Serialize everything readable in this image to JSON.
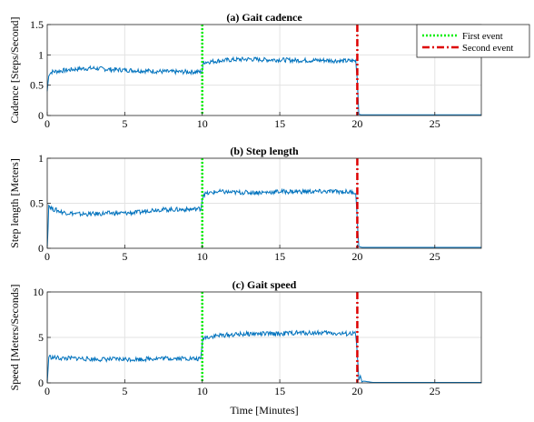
{
  "figure": {
    "xlabel": "Time [Minutes]",
    "legend": {
      "placement": "top-right",
      "entries": [
        {
          "label": "First event",
          "color": "#00ee00",
          "style": "dotted"
        },
        {
          "label": "Second event",
          "color": "#dd0000",
          "style": "dash-dot"
        }
      ]
    }
  },
  "chart_data": [
    {
      "type": "line",
      "title": "(a) Gait cadence",
      "xlabel": "",
      "ylabel": "Cadence [Steps/Second]",
      "xlim": [
        0,
        28
      ],
      "ylim": [
        0,
        1.5
      ],
      "xticks": [
        "0",
        "5",
        "10",
        "15",
        "20",
        "25"
      ],
      "yticks": [
        "0",
        "0.5",
        "1",
        "1.5"
      ],
      "grid": true,
      "series": [
        {
          "color": "#0072bd",
          "x": [
            0,
            0.1,
            0.3,
            1,
            2,
            3,
            4,
            5,
            6,
            7,
            8,
            9,
            9.9,
            10,
            10.1,
            11,
            12,
            13,
            14,
            15,
            16,
            17,
            18,
            19,
            19.9,
            20,
            20.1,
            20.3,
            21,
            22,
            23,
            24,
            25,
            26,
            27,
            28
          ],
          "y": [
            0.4,
            0.68,
            0.72,
            0.74,
            0.77,
            0.78,
            0.76,
            0.75,
            0.74,
            0.73,
            0.72,
            0.72,
            0.72,
            0.75,
            0.88,
            0.9,
            0.92,
            0.93,
            0.92,
            0.92,
            0.91,
            0.91,
            0.91,
            0.9,
            0.9,
            0.6,
            0.02,
            0.01,
            0.01,
            0.01,
            0.01,
            0.01,
            0.01,
            0.01,
            0.01,
            0.01
          ]
        }
      ],
      "events": [
        10,
        20
      ]
    },
    {
      "type": "line",
      "title": "(b) Step length",
      "xlabel": "",
      "ylabel": "Step length [Meters]",
      "xlim": [
        0,
        28
      ],
      "ylim": [
        0,
        1
      ],
      "xticks": [
        "0",
        "5",
        "10",
        "15",
        "20",
        "25"
      ],
      "yticks": [
        "0",
        "0.5",
        "1"
      ],
      "grid": true,
      "series": [
        {
          "color": "#0072bd",
          "x": [
            0,
            0.1,
            0.3,
            1,
            2,
            3,
            4,
            5,
            6,
            6.5,
            7,
            8,
            9,
            9.9,
            10,
            10.1,
            11,
            12,
            13,
            14,
            15,
            16,
            17,
            18,
            19,
            19.9,
            20,
            20.1,
            20.3,
            21,
            22,
            23,
            24,
            25,
            26,
            27,
            28
          ],
          "y": [
            0.0,
            0.48,
            0.44,
            0.4,
            0.38,
            0.38,
            0.39,
            0.39,
            0.4,
            0.42,
            0.43,
            0.43,
            0.43,
            0.44,
            0.55,
            0.6,
            0.63,
            0.62,
            0.62,
            0.62,
            0.63,
            0.63,
            0.63,
            0.63,
            0.63,
            0.62,
            0.3,
            0.02,
            0.01,
            0.01,
            0.01,
            0.01,
            0.01,
            0.01,
            0.01,
            0.01,
            0.01
          ]
        }
      ],
      "events": [
        10,
        20
      ]
    },
    {
      "type": "line",
      "title": "(c) Gait speed",
      "xlabel": "Time [Minutes]",
      "ylabel": "Speed [Meters/Seconds]",
      "xlim": [
        0,
        28
      ],
      "ylim": [
        0,
        10
      ],
      "xticks": [
        "0",
        "5",
        "10",
        "15",
        "20",
        "25"
      ],
      "yticks": [
        "0",
        "5",
        "10"
      ],
      "grid": true,
      "series": [
        {
          "color": "#0072bd",
          "x": [
            0,
            0.1,
            0.3,
            1,
            2,
            3,
            4,
            5,
            6,
            7,
            8,
            9,
            9.9,
            10,
            10.1,
            11,
            12,
            13,
            14,
            15,
            16,
            17,
            18,
            19,
            19.9,
            20,
            20.1,
            20.2,
            20.3,
            20.4,
            21,
            22,
            23,
            24,
            25,
            26,
            27,
            28
          ],
          "y": [
            0.0,
            2.9,
            2.8,
            2.7,
            2.7,
            2.6,
            2.6,
            2.6,
            2.6,
            2.7,
            2.7,
            2.7,
            2.6,
            4.5,
            5.0,
            5.2,
            5.3,
            5.4,
            5.4,
            5.4,
            5.5,
            5.5,
            5.5,
            5.4,
            5.4,
            3.0,
            0.3,
            0.8,
            0.1,
            0.2,
            0.05,
            0.05,
            0.05,
            0.05,
            0.05,
            0.05,
            0.05,
            0.05
          ]
        }
      ],
      "events": [
        10,
        20
      ]
    }
  ]
}
